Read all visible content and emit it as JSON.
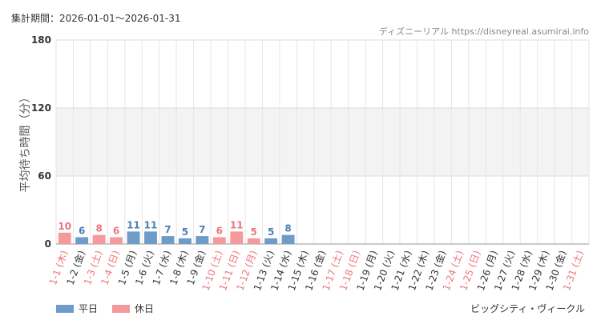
{
  "header": {
    "period_label": "集計期間：2026-01-01～2026-01-31",
    "site_credit": "ディズニーリアル https://disneyreal.asumirai.info"
  },
  "legend": {
    "weekday_label": "平日",
    "holiday_label": "休日",
    "weekday_color": "#6e9bc8",
    "holiday_color": "#f49a9d"
  },
  "footer": {
    "facility_name": "ビッグシティ・ヴィークル"
  },
  "chart_data": {
    "type": "bar",
    "ylabel": "平均待ち時間（分）",
    "ylim": [
      0,
      180
    ],
    "yticks": [
      0,
      60,
      120,
      180
    ],
    "shaded_band": [
      60,
      120
    ],
    "grid": true,
    "legend_position": "bottom-left",
    "categories": [
      "1-1 (木)",
      "1-2 (金)",
      "1-3 (土)",
      "1-4 (日)",
      "1-5 (月)",
      "1-6 (火)",
      "1-7 (水)",
      "1-8 (木)",
      "1-9 (金)",
      "1-10 (土)",
      "1-11 (日)",
      "1-12 (月)",
      "1-13 (火)",
      "1-14 (水)",
      "1-15 (木)",
      "1-16 (金)",
      "1-17 (土)",
      "1-18 (日)",
      "1-19 (月)",
      "1-20 (火)",
      "1-21 (水)",
      "1-22 (木)",
      "1-23 (金)",
      "1-24 (土)",
      "1-25 (日)",
      "1-26 (月)",
      "1-27 (火)",
      "1-28 (水)",
      "1-29 (木)",
      "1-30 (金)",
      "1-31 (土)"
    ],
    "day_type": [
      "holiday",
      "weekday",
      "holiday",
      "holiday",
      "weekday",
      "weekday",
      "weekday",
      "weekday",
      "weekday",
      "holiday",
      "holiday",
      "holiday",
      "weekday",
      "weekday",
      "weekday",
      "weekday",
      "holiday",
      "holiday",
      "weekday",
      "weekday",
      "weekday",
      "weekday",
      "weekday",
      "holiday",
      "holiday",
      "weekday",
      "weekday",
      "weekday",
      "weekday",
      "weekday",
      "holiday"
    ],
    "values": [
      10,
      6,
      8,
      6,
      11,
      11,
      7,
      5,
      7,
      6,
      11,
      5,
      5,
      8,
      null,
      null,
      null,
      null,
      null,
      null,
      null,
      null,
      null,
      null,
      null,
      null,
      null,
      null,
      null,
      null,
      null
    ]
  }
}
